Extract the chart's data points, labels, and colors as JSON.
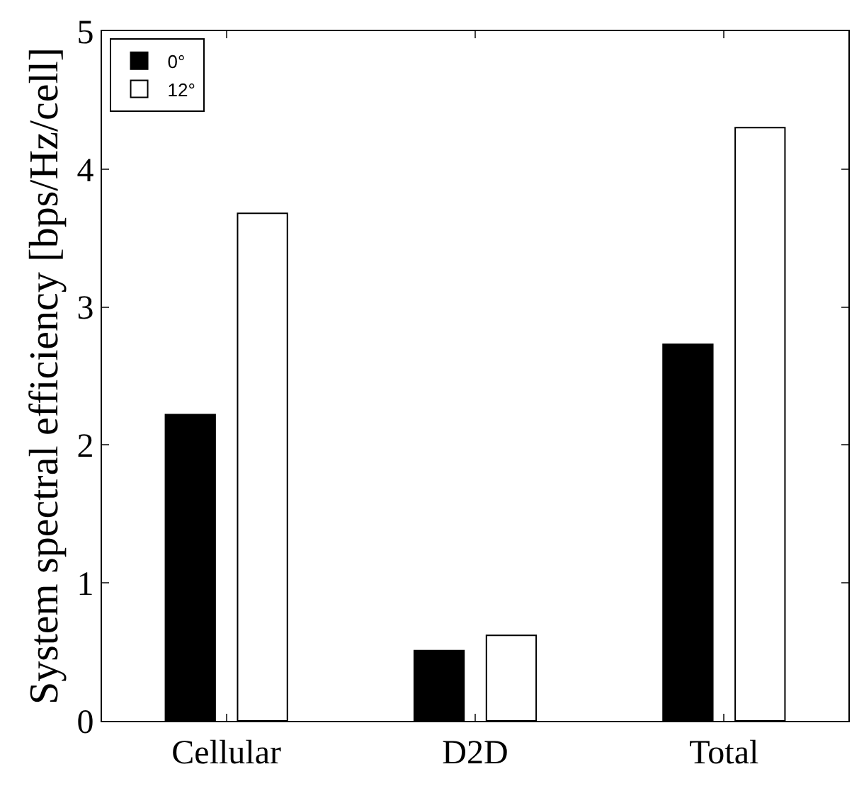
{
  "chart_data": {
    "type": "bar",
    "ylabel": "System spectral efficiency [bps/Hz/cell]",
    "categories": [
      "Cellular",
      "D2D",
      "Total"
    ],
    "series": [
      {
        "name": "0°",
        "color": "#000000",
        "values": [
          2.22,
          0.51,
          2.73
        ]
      },
      {
        "name": "12°",
        "color": "#ffffff",
        "values": [
          3.68,
          0.62,
          4.3
        ]
      }
    ],
    "ylim": [
      0,
      5
    ],
    "yticks": [
      0,
      1,
      2,
      3,
      4,
      5
    ],
    "legend": "top left"
  }
}
